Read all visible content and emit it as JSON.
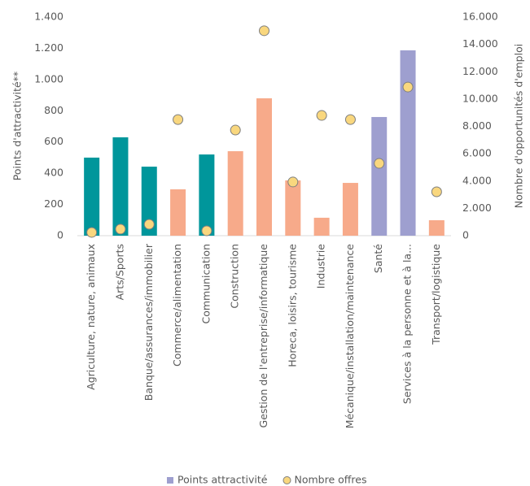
{
  "chart_data": {
    "type": "bar-scatter",
    "y_label": "Points d'attractivité**",
    "y2_label": "Nombre d'opportunités d'emploi",
    "categories": [
      "Agriculture, nature, animaux",
      "Arts/Sports",
      "Banque/assurances/immobilier",
      "Commerce/alimentation",
      "Communication",
      "Construction",
      "Gestion de l'entreprise/informatique",
      "Horeca, loisirs, tourisme",
      "Industrie",
      "Mécanique/installation/maintenance",
      "Santé",
      "Services à la personne et à la...",
      "Transport/logistique"
    ],
    "series": [
      {
        "name": "Points attractivité",
        "type": "bar",
        "color": "#9e9fcf",
        "colors": [
          "#00969b",
          "#00969b",
          "#00969b",
          "#f7aa8a",
          "#00969b",
          "#f7aa8a",
          "#f7aa8a",
          "#f7aa8a",
          "#f7aa8a",
          "#f7aa8a",
          "#9e9fcf",
          "#9e9fcf",
          "#f7aa8a"
        ],
        "values": [
          500,
          630,
          442,
          297,
          520,
          541,
          880,
          354,
          115,
          338,
          760,
          1187,
          99
        ]
      },
      {
        "name": "Nombre offres",
        "type": "scatter",
        "axis": "y2",
        "color": "#f9d77e",
        "edge_color": "#7f7f7f",
        "values": [
          240,
          480,
          830,
          8500,
          360,
          7730,
          15000,
          3930,
          8800,
          8500,
          5290,
          10880,
          3210
        ]
      }
    ],
    "ylim": [
      0,
      1400
    ],
    "yticks": [
      0,
      200,
      400,
      600,
      800,
      {
        "value": 1000,
        "label": "1.000"
      },
      {
        "value": 1200,
        "label": "1.200"
      },
      {
        "value": 1400,
        "label": "1.400"
      }
    ],
    "y2lim": [
      0,
      16000
    ],
    "y2ticks": [
      0,
      {
        "value": 2000,
        "label": "2.000"
      },
      {
        "value": 4000,
        "label": "4.000"
      },
      {
        "value": 6000,
        "label": "6.000"
      },
      {
        "value": 8000,
        "label": "8.000"
      },
      {
        "value": 10000,
        "label": "10.000"
      },
      {
        "value": 12000,
        "label": "12.000"
      },
      {
        "value": 14000,
        "label": "14.000"
      },
      {
        "value": 16000,
        "label": "16.000"
      }
    ],
    "legend": "bottom"
  }
}
